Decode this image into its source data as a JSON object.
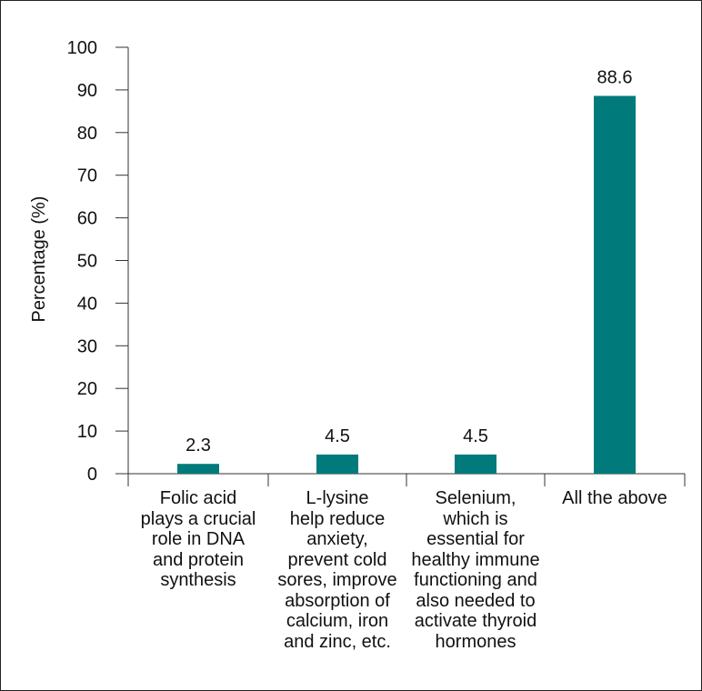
{
  "chart_data": {
    "type": "bar",
    "title": "",
    "xlabel": "",
    "ylabel": "Percentage (%)",
    "ylim": [
      0,
      100
    ],
    "yticks": [
      0,
      10,
      20,
      30,
      40,
      50,
      60,
      70,
      80,
      90,
      100
    ],
    "categories": [
      "Folic acid\nplays a crucial\nrole in DNA\nand protein\nsynthesis",
      "L-lysine\nhelp reduce\nanxiety,\nprevent cold\nsores, improve\nabsorption of\ncalcium, iron\nand zinc, etc.",
      "Selenium,\nwhich is\nessential for\nhealthy immune\nfunctioning and\nalso needed to\nactivate thyroid\nhormones",
      "All the above"
    ],
    "values": [
      2.3,
      4.5,
      4.5,
      88.6
    ],
    "data_labels": [
      "2.3",
      "4.5",
      "4.5",
      "88.6"
    ],
    "bar_color": "#007a7a",
    "grid": false
  }
}
